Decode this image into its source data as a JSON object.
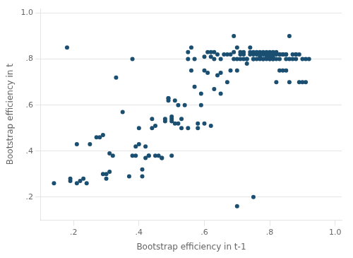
{
  "chart_data": {
    "type": "scatter",
    "x_label": "Bootstrap efficiency in t-1",
    "y_label": "Bootstrap efficiency in t",
    "x": [
      0.14,
      0.18,
      0.19,
      0.21,
      0.22,
      0.24,
      0.19,
      0.21,
      0.23,
      0.25,
      0.27,
      0.28,
      0.29,
      0.29,
      0.3,
      0.3,
      0.31,
      0.31,
      0.32,
      0.33,
      0.35,
      0.37,
      0.38,
      0.38,
      0.39,
      0.39,
      0.4,
      0.4,
      0.41,
      0.41,
      0.42,
      0.42,
      0.43,
      0.43,
      0.44,
      0.44,
      0.45,
      0.45,
      0.46,
      0.47,
      0.47,
      0.48,
      0.48,
      0.49,
      0.49,
      0.49,
      0.5,
      0.5,
      0.5,
      0.5,
      0.51,
      0.51,
      0.52,
      0.52,
      0.53,
      0.53,
      0.54,
      0.55,
      0.55,
      0.55,
      0.56,
      0.56,
      0.57,
      0.57,
      0.58,
      0.58,
      0.59,
      0.59,
      0.6,
      0.6,
      0.6,
      0.61,
      0.61,
      0.62,
      0.62,
      0.62,
      0.63,
      0.63,
      0.63,
      0.64,
      0.64,
      0.65,
      0.65,
      0.65,
      0.66,
      0.67,
      0.67,
      0.68,
      0.68,
      0.69,
      0.69,
      0.69,
      0.7,
      0.7,
      0.7,
      0.71,
      0.71,
      0.71,
      0.72,
      0.72,
      0.72,
      0.73,
      0.73,
      0.73,
      0.74,
      0.74,
      0.74,
      0.75,
      0.75,
      0.75,
      0.75,
      0.76,
      0.76,
      0.76,
      0.77,
      0.77,
      0.77,
      0.77,
      0.78,
      0.78,
      0.78,
      0.78,
      0.79,
      0.79,
      0.79,
      0.79,
      0.8,
      0.8,
      0.8,
      0.8,
      0.8,
      0.81,
      0.81,
      0.81,
      0.81,
      0.81,
      0.82,
      0.82,
      0.82,
      0.82,
      0.83,
      0.83,
      0.83,
      0.83,
      0.84,
      0.84,
      0.84,
      0.84,
      0.85,
      0.85,
      0.85,
      0.85,
      0.86,
      0.86,
      0.86,
      0.87,
      0.87,
      0.88,
      0.88,
      0.88,
      0.89,
      0.89,
      0.9,
      0.9,
      0.91,
      0.91,
      0.92,
      0.7,
      0.75
    ],
    "values": [
      0.26,
      0.85,
      0.27,
      0.26,
      0.27,
      0.26,
      0.28,
      0.43,
      0.28,
      0.43,
      0.46,
      0.46,
      0.47,
      0.3,
      0.3,
      0.28,
      0.31,
      0.39,
      0.38,
      0.72,
      0.57,
      0.29,
      0.8,
      0.38,
      0.38,
      0.42,
      0.43,
      0.5,
      0.32,
      0.29,
      0.37,
      0.42,
      0.38,
      0.38,
      0.54,
      0.5,
      0.38,
      0.51,
      0.38,
      0.37,
      0.37,
      0.54,
      0.53,
      0.62,
      0.63,
      0.63,
      0.38,
      0.55,
      0.54,
      0.53,
      0.52,
      0.62,
      0.6,
      0.52,
      0.54,
      0.5,
      0.6,
      0.83,
      0.8,
      0.5,
      0.85,
      0.75,
      0.8,
      0.68,
      0.5,
      0.52,
      0.65,
      0.6,
      0.81,
      0.75,
      0.52,
      0.83,
      0.74,
      0.83,
      0.81,
      0.51,
      0.83,
      0.67,
      0.8,
      0.82,
      0.73,
      0.8,
      0.74,
      0.65,
      0.82,
      0.82,
      0.7,
      0.82,
      0.75,
      0.9,
      0.8,
      0.83,
      0.85,
      0.8,
      0.75,
      0.82,
      0.83,
      0.8,
      0.83,
      0.8,
      0.82,
      0.8,
      0.78,
      0.8,
      0.85,
      0.82,
      0.83,
      0.8,
      0.83,
      0.8,
      0.82,
      0.8,
      0.82,
      0.83,
      0.81,
      0.82,
      0.8,
      0.83,
      0.8,
      0.82,
      0.8,
      0.83,
      0.8,
      0.82,
      0.81,
      0.83,
      0.8,
      0.82,
      0.8,
      0.81,
      0.83,
      0.8,
      0.82,
      0.81,
      0.8,
      0.83,
      0.82,
      0.83,
      0.8,
      0.7,
      0.82,
      0.75,
      0.82,
      0.8,
      0.82,
      0.75,
      0.82,
      0.82,
      0.8,
      0.82,
      0.75,
      0.82,
      0.8,
      0.7,
      0.9,
      0.8,
      0.82,
      0.82,
      0.82,
      0.8,
      0.82,
      0.7,
      0.8,
      0.7,
      0.8,
      0.7,
      0.8,
      0.16,
      0.2
    ],
    "color": "#1b4f72",
    "xlim": [
      0.1,
      1.02
    ],
    "ylim": [
      0.1,
      1.02
    ],
    "xticks": [
      {
        "value": 0.2,
        "label": ".2"
      },
      {
        "value": 0.4,
        "label": ".4"
      },
      {
        "value": 0.6,
        "label": ".6"
      },
      {
        "value": 0.8,
        "label": ".8"
      },
      {
        "value": 1.0,
        "label": "1.0"
      }
    ],
    "yticks": [
      {
        "value": 0.2,
        "label": ".2"
      },
      {
        "value": 0.4,
        "label": ".4"
      },
      {
        "value": 0.6,
        "label": ".6"
      },
      {
        "value": 0.8,
        "label": ".8"
      },
      {
        "value": 1.0,
        "label": "1.0"
      }
    ],
    "grid": "y"
  }
}
